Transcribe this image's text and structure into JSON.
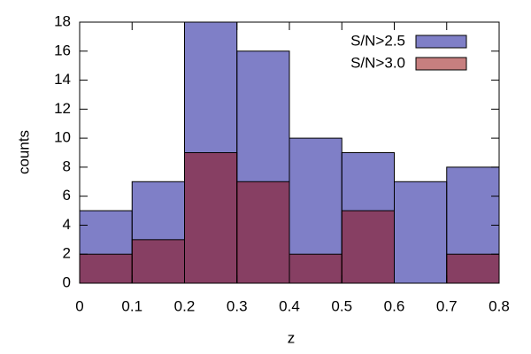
{
  "chart_data": {
    "type": "histogram",
    "xlabel": "z",
    "ylabel": "counts",
    "bins": [
      0,
      0.1,
      0.2,
      0.3,
      0.4,
      0.5,
      0.6,
      0.7,
      0.8
    ],
    "series": [
      {
        "name": "S/N>2.5",
        "color": "#000090",
        "opacity": 0.5,
        "values": [
          5,
          7,
          18,
          16,
          10,
          9,
          7,
          8
        ]
      },
      {
        "name": "S/N>3.0",
        "color": "#900000",
        "opacity": 0.5,
        "values": [
          2,
          3,
          9,
          7,
          2,
          5,
          0,
          2
        ]
      }
    ],
    "xlim": [
      0,
      0.8
    ],
    "xticks": [
      0,
      0.1,
      0.2,
      0.3,
      0.4,
      0.5,
      0.6,
      0.7,
      0.8
    ],
    "ylim": [
      0,
      18
    ],
    "yticks": [
      0,
      2,
      4,
      6,
      8,
      10,
      12,
      14,
      16,
      18
    ],
    "grid": false,
    "legend": "top-right"
  }
}
